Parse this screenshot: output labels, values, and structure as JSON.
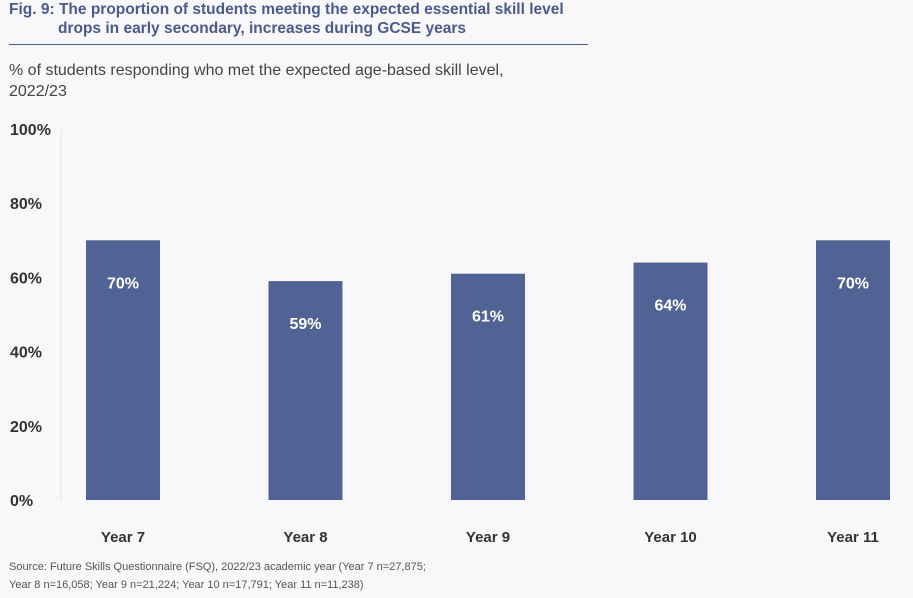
{
  "figure": {
    "label": "Fig. 9:",
    "title_line1": "The proportion of students meeting the expected essential skill level",
    "title_line2": "drops in early secondary, increases during GCSE years",
    "subtitle": "% of students responding who met the expected age-based skill level, 2022/23",
    "source": "Source: Future Skills Questionnaire (FSQ), 2022/23 academic year (Year 7 n=27,875; Year 8 n=16,058; Year 9 n=21,224; Year 10 n=17,791; Year 11 n=11,238)"
  },
  "chart_data": {
    "type": "bar",
    "categories": [
      "Year 7",
      "Year 8",
      "Year 9",
      "Year 10",
      "Year 11"
    ],
    "values": [
      70,
      59,
      61,
      64,
      70
    ],
    "data_labels": [
      "70%",
      "59%",
      "61%",
      "64%",
      "70%"
    ],
    "ylim": [
      0,
      100
    ],
    "yticks": [
      0,
      20,
      40,
      60,
      80,
      100
    ],
    "ytick_labels": [
      "0%",
      "20%",
      "40%",
      "60%",
      "80%",
      "100%"
    ],
    "bar_color": "#506394",
    "label_color": "#ffffff",
    "grid": false
  }
}
